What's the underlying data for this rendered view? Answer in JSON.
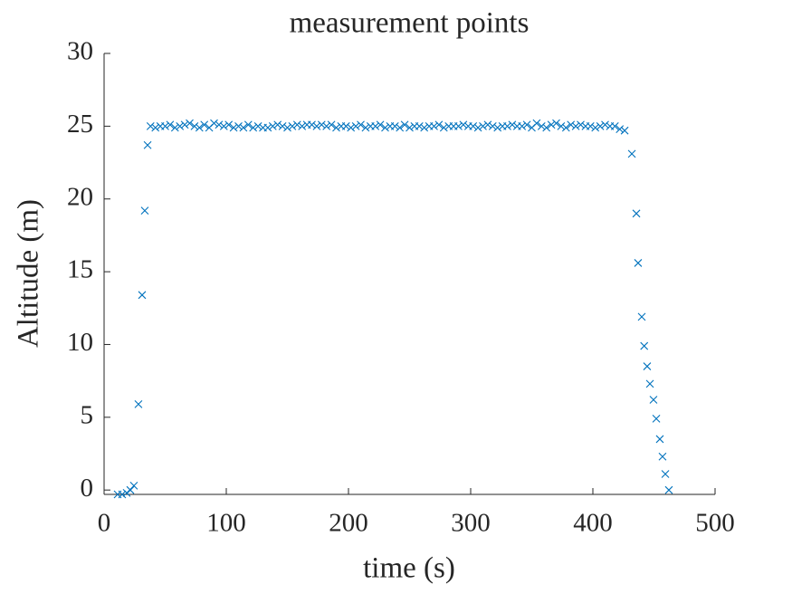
{
  "chart_data": {
    "type": "scatter",
    "title": "measurement points",
    "xlabel": "time (s)",
    "ylabel": "Altitude (m)",
    "marker": "x",
    "color": "#0072BD",
    "xlim": [
      0,
      500
    ],
    "xticks": [
      0,
      100,
      200,
      300,
      400,
      500
    ],
    "ylim": [
      -0.3,
      30
    ],
    "yticks": [
      0,
      5,
      10,
      15,
      20,
      25,
      30
    ],
    "x": [
      11.1,
      14.8,
      18.5,
      21.5,
      24.4,
      28.1,
      31.1,
      33.3,
      35.6,
      38,
      42,
      46,
      50,
      54,
      58,
      62,
      66,
      70,
      74,
      78,
      82,
      86,
      90,
      94,
      98,
      102,
      106,
      110,
      114,
      118,
      122,
      126,
      130,
      134,
      138,
      142,
      146,
      150,
      154,
      158,
      162,
      166,
      170,
      174,
      178,
      182,
      186,
      190,
      194,
      198,
      202,
      206,
      210,
      214,
      218,
      222,
      226,
      230,
      234,
      238,
      242,
      246,
      250,
      254,
      258,
      262,
      266,
      270,
      274,
      278,
      282,
      286,
      290,
      294,
      298,
      302,
      306,
      310,
      314,
      318,
      322,
      326,
      330,
      334,
      338,
      342,
      346,
      350,
      354,
      358,
      362,
      366,
      370,
      374,
      378,
      382,
      386,
      390,
      394,
      398,
      402,
      406,
      410,
      414,
      418,
      422,
      426,
      431.9,
      435.6,
      437,
      440,
      442,
      444.4,
      446.7,
      449.6,
      451.9,
      454.8,
      457,
      459.3,
      462.2
    ],
    "values": [
      -0.3,
      -0.3,
      -0.2,
      0,
      0.3,
      5.9,
      13.4,
      19.2,
      23.7,
      25.0,
      24.9,
      25.0,
      25.0,
      25.1,
      24.9,
      25.0,
      25.1,
      25.2,
      25.0,
      24.9,
      25.1,
      24.9,
      25.2,
      25.1,
      25.0,
      25.1,
      24.9,
      25.0,
      24.9,
      25.1,
      24.9,
      25.0,
      24.9,
      24.9,
      25.0,
      25.1,
      25.0,
      24.9,
      25.0,
      25.1,
      25.0,
      25.1,
      25.1,
      25.0,
      25.1,
      25.0,
      25.1,
      24.9,
      25.0,
      25.0,
      24.9,
      25.0,
      25.1,
      24.9,
      25.0,
      25.0,
      25.1,
      24.9,
      25.0,
      25.0,
      24.9,
      25.1,
      24.9,
      25.0,
      25.0,
      24.9,
      25.0,
      25.0,
      25.1,
      24.9,
      25.0,
      25.0,
      25.0,
      25.1,
      25.0,
      25.0,
      24.9,
      25.0,
      25.1,
      25.0,
      24.9,
      25.0,
      25.0,
      25.1,
      25.0,
      25.0,
      25.1,
      24.9,
      25.2,
      25.0,
      24.9,
      25.1,
      25.2,
      25.0,
      24.9,
      25.1,
      25.0,
      25.1,
      25.0,
      25.0,
      24.9,
      25.0,
      25.1,
      25.0,
      25.0,
      24.8,
      24.7,
      23.1,
      19.0,
      15.6,
      11.9,
      9.9,
      8.5,
      7.3,
      6.2,
      4.9,
      3.5,
      2.3,
      1.1,
      0
    ]
  }
}
